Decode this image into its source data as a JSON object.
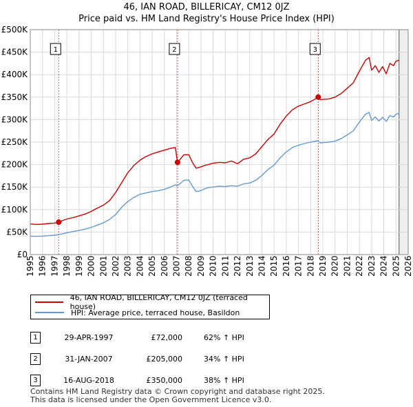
{
  "title_line1": "46, IAN ROAD, BILLERICAY, CM12 0JZ",
  "title_line2": "Price paid vs. HM Land Registry's House Price Index (HPI)",
  "colors": {
    "red": "#cc0000",
    "blue": "#6699cc",
    "grid": "#d9d9d9",
    "plot_bg": "#ffffff",
    "shade": "#eeeeee"
  },
  "chart_data": {
    "type": "line",
    "xlim": [
      1995,
      2026
    ],
    "ylim": [
      0,
      500000
    ],
    "y_ticks": [
      0,
      50000,
      100000,
      150000,
      200000,
      250000,
      300000,
      350000,
      400000,
      450000,
      500000
    ],
    "y_tick_labels": [
      "£0",
      "£50K",
      "£100K",
      "£150K",
      "£200K",
      "£250K",
      "£300K",
      "£350K",
      "£400K",
      "£450K",
      "£500K"
    ],
    "x_ticks": [
      1995,
      1996,
      1997,
      1998,
      1999,
      2000,
      2001,
      2002,
      2003,
      2004,
      2005,
      2006,
      2007,
      2008,
      2009,
      2010,
      2011,
      2012,
      2013,
      2014,
      2015,
      2016,
      2017,
      2018,
      2019,
      2020,
      2021,
      2022,
      2023,
      2024,
      2025,
      2026
    ],
    "x_tick_labels": [
      "1995",
      "1996",
      "1997",
      "1998",
      "1999",
      "2000",
      "2001",
      "2002",
      "2003",
      "2004",
      "2005",
      "2006",
      "2007",
      "2008",
      "2009",
      "2010",
      "2011",
      "2012",
      "2013",
      "2014",
      "2015",
      "2016",
      "2017",
      "2018",
      "2019",
      "2020",
      "2021",
      "2022",
      "2023",
      "2024",
      "2025",
      "2026"
    ],
    "future_shade_from": 2025.25,
    "series": [
      {
        "name": "46, IAN ROAD, BILLERICAY, CM12 0JZ (terraced house)",
        "color": "red",
        "x": [
          1995.0,
          1995.5,
          1996.0,
          1996.5,
          1997.0,
          1997.33,
          1997.7,
          1998.0,
          1998.5,
          1999.0,
          1999.5,
          2000.0,
          2000.5,
          2001.0,
          2001.5,
          2002.0,
          2002.5,
          2003.0,
          2003.5,
          2004.0,
          2004.5,
          2005.0,
          2005.5,
          2006.0,
          2006.5,
          2006.9,
          2007.08,
          2007.3,
          2007.6,
          2008.0,
          2008.3,
          2008.6,
          2009.0,
          2009.3,
          2009.6,
          2010.0,
          2010.5,
          2011.0,
          2011.5,
          2012.0,
          2012.5,
          2013.0,
          2013.5,
          2014.0,
          2014.5,
          2015.0,
          2015.5,
          2016.0,
          2016.5,
          2017.0,
          2017.5,
          2018.0,
          2018.62,
          2018.8,
          2019.0,
          2019.5,
          2020.0,
          2020.5,
          2021.0,
          2021.5,
          2022.0,
          2022.5,
          2022.8,
          2023.0,
          2023.3,
          2023.6,
          2023.9,
          2024.2,
          2024.5,
          2024.8,
          2025.0,
          2025.25
        ],
        "values": [
          68000,
          67000,
          67500,
          69000,
          70000,
          72000,
          76000,
          79000,
          82000,
          86000,
          90000,
          96000,
          103000,
          110000,
          120000,
          138000,
          160000,
          182000,
          198000,
          210000,
          218000,
          224000,
          228000,
          232000,
          236000,
          238000,
          205000,
          212000,
          222000,
          222000,
          205000,
          192000,
          195000,
          198000,
          200000,
          203000,
          205000,
          204000,
          208000,
          202000,
          212000,
          215000,
          224000,
          240000,
          256000,
          268000,
          290000,
          308000,
          322000,
          330000,
          335000,
          340000,
          350000,
          344000,
          345000,
          346000,
          350000,
          358000,
          370000,
          382000,
          408000,
          432000,
          438000,
          410000,
          420000,
          405000,
          418000,
          402000,
          425000,
          420000,
          430000,
          432000
        ]
      },
      {
        "name": "HPI: Average price, terraced house, Basildon",
        "color": "blue",
        "x": [
          1995.0,
          1995.5,
          1996.0,
          1996.5,
          1997.0,
          1997.33,
          1997.7,
          1998.0,
          1998.5,
          1999.0,
          1999.5,
          2000.0,
          2000.5,
          2001.0,
          2001.5,
          2002.0,
          2002.5,
          2003.0,
          2003.5,
          2004.0,
          2004.5,
          2005.0,
          2005.5,
          2006.0,
          2006.5,
          2006.9,
          2007.08,
          2007.3,
          2007.6,
          2008.0,
          2008.3,
          2008.6,
          2009.0,
          2009.3,
          2009.6,
          2010.0,
          2010.5,
          2011.0,
          2011.5,
          2012.0,
          2012.5,
          2013.0,
          2013.5,
          2014.0,
          2014.5,
          2015.0,
          2015.5,
          2016.0,
          2016.5,
          2017.0,
          2017.5,
          2018.0,
          2018.62,
          2018.8,
          2019.0,
          2019.5,
          2020.0,
          2020.5,
          2021.0,
          2021.5,
          2022.0,
          2022.5,
          2022.8,
          2023.0,
          2023.3,
          2023.6,
          2023.9,
          2024.2,
          2024.5,
          2024.8,
          2025.0,
          2025.25
        ],
        "values": [
          41000,
          40500,
          41000,
          42000,
          43000,
          44500,
          46500,
          48500,
          51000,
          53500,
          56500,
          60500,
          65500,
          70500,
          78000,
          89000,
          105000,
          118000,
          127000,
          134000,
          137000,
          140000,
          142000,
          145000,
          150000,
          155000,
          153000,
          158000,
          165000,
          166000,
          152000,
          140000,
          142000,
          146000,
          149000,
          150000,
          152000,
          151000,
          153000,
          152000,
          157000,
          159000,
          165000,
          176000,
          189000,
          199000,
          215000,
          228000,
          238000,
          243000,
          247000,
          250000,
          253000,
          248000,
          249000,
          250000,
          252000,
          258000,
          266000,
          275000,
          295000,
          312000,
          316000,
          298000,
          306000,
          297000,
          305000,
          296000,
          309000,
          306000,
          312000,
          314000
        ]
      }
    ],
    "sales": [
      {
        "label": "1",
        "x": 1997.33,
        "value": 72000
      },
      {
        "label": "2",
        "x": 2007.08,
        "value": 205000
      },
      {
        "label": "3",
        "x": 2018.62,
        "value": 350000
      }
    ]
  },
  "legend": {
    "red_label": "46, IAN ROAD, BILLERICAY, CM12 0JZ (terraced house)",
    "blue_label": "HPI: Average price, terraced house, Basildon"
  },
  "sales_table": [
    {
      "num": "1",
      "date": "29-APR-1997",
      "price": "£72,000",
      "hpi": "62% ↑ HPI"
    },
    {
      "num": "2",
      "date": "31-JAN-2007",
      "price": "£205,000",
      "hpi": "34% ↑ HPI"
    },
    {
      "num": "3",
      "date": "16-AUG-2018",
      "price": "£350,000",
      "hpi": "38% ↑ HPI"
    }
  ],
  "footer_line1": "Contains HM Land Registry data © Crown copyright and database right 2025.",
  "footer_line2": "This data is licensed under the Open Government Licence v3.0."
}
